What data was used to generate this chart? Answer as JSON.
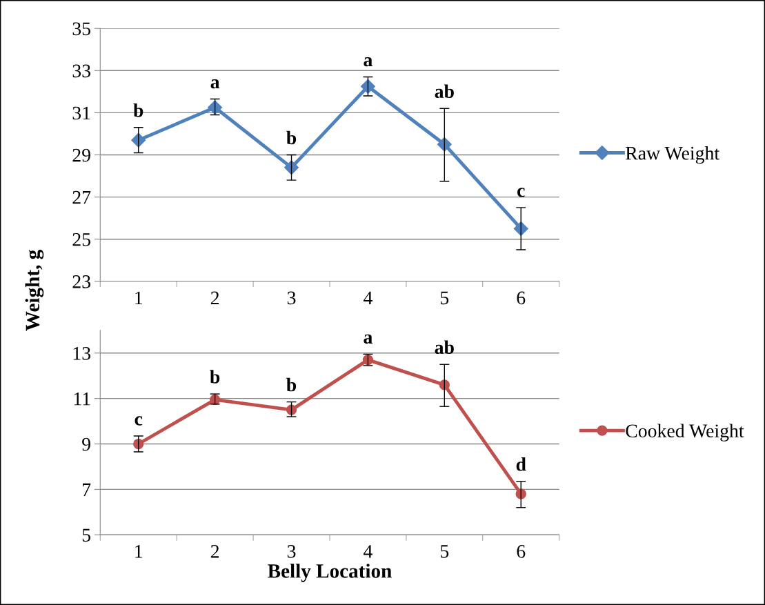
{
  "chart_data": [
    {
      "type": "line",
      "ylabel": "Weight, g",
      "categories": [
        "1",
        "2",
        "3",
        "4",
        "5",
        "6"
      ],
      "series": [
        {
          "name": "Raw Weight",
          "color": "#4f81bd",
          "values": [
            29.7,
            31.25,
            28.4,
            32.25,
            29.5,
            25.5
          ],
          "errors": [
            [
              29.1,
              30.3
            ],
            [
              30.9,
              31.65
            ],
            [
              27.8,
              29.0
            ],
            [
              31.8,
              32.7
            ],
            [
              27.75,
              31.2
            ],
            [
              24.5,
              26.5
            ]
          ]
        }
      ],
      "ylim": [
        23,
        35
      ],
      "yticks": [
        23,
        25,
        27,
        29,
        31,
        33,
        35
      ],
      "grid": "y",
      "legend": "right",
      "marker": "diamond",
      "line_style": "solid",
      "annotations": [
        "b",
        "a",
        "b",
        "a",
        "ab",
        "c"
      ]
    },
    {
      "type": "line",
      "xlabel": "Belly Location",
      "categories": [
        "1",
        "2",
        "3",
        "4",
        "5",
        "6"
      ],
      "series": [
        {
          "name": "Cooked Weight",
          "color": "#c0504d",
          "values": [
            9.0,
            10.95,
            10.5,
            12.7,
            11.6,
            6.8
          ],
          "errors": [
            [
              8.65,
              9.35
            ],
            [
              10.75,
              11.2
            ],
            [
              10.2,
              10.85
            ],
            [
              12.45,
              12.95
            ],
            [
              10.65,
              12.5
            ],
            [
              6.2,
              7.35
            ]
          ]
        }
      ],
      "ylim": [
        5,
        14
      ],
      "yticks": [
        5,
        7,
        9,
        11,
        13
      ],
      "grid": "y",
      "legend": "right",
      "marker": "circle",
      "line_style": "solid",
      "annotations": [
        "c",
        "b",
        "b",
        "a",
        "ab",
        "d"
      ]
    }
  ]
}
